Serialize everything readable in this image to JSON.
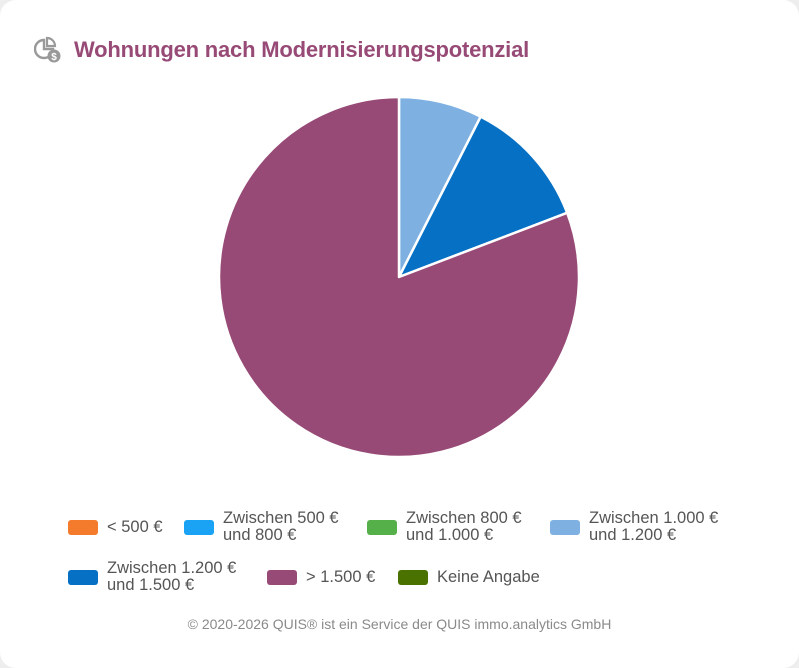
{
  "title": "Wohnungen nach Modernisierungspotenzial",
  "title_icon": "pie-chart-euro-icon",
  "chart_data": {
    "type": "pie",
    "title": "Wohnungen nach Modernisierungspotenzial",
    "legend_position": "bottom",
    "slices": [
      {
        "label": "< 500 €",
        "value": 0,
        "color": "#f47a2c"
      },
      {
        "label": "Zwischen 500 € und 800 €",
        "value": 0,
        "color": "#1aa3f5"
      },
      {
        "label": "Zwischen 800 € und 1.000 €",
        "value": 0,
        "color": "#55b04a"
      },
      {
        "label": "Zwischen 1.000 € und 1.200 €",
        "value": 7.5,
        "color": "#7eb1e2"
      },
      {
        "label": "Zwischen 1.200 € und 1.500 €",
        "value": 11.7,
        "color": "#0670c4"
      },
      {
        "label": "> 1.500 €",
        "value": 80.8,
        "color": "#974a76"
      },
      {
        "label": "Keine Angabe",
        "value": 0,
        "color": "#4a7200"
      }
    ]
  },
  "legend": [
    {
      "line1": "< 500 €",
      "line2": ""
    },
    {
      "line1": "Zwischen 500 €",
      "line2": "und 800 €"
    },
    {
      "line1": "Zwischen 800 €",
      "line2": "und 1.000 €"
    },
    {
      "line1": "Zwischen 1.000 €",
      "line2": "und 1.200 €"
    },
    {
      "line1": "Zwischen 1.200 €",
      "line2": "und 1.500 €"
    },
    {
      "line1": "> 1.500 €",
      "line2": ""
    },
    {
      "line1": "Keine Angabe",
      "line2": ""
    }
  ],
  "footer": "© 2020-2026 QUIS® ist ein Service der QUIS immo.analytics GmbH"
}
